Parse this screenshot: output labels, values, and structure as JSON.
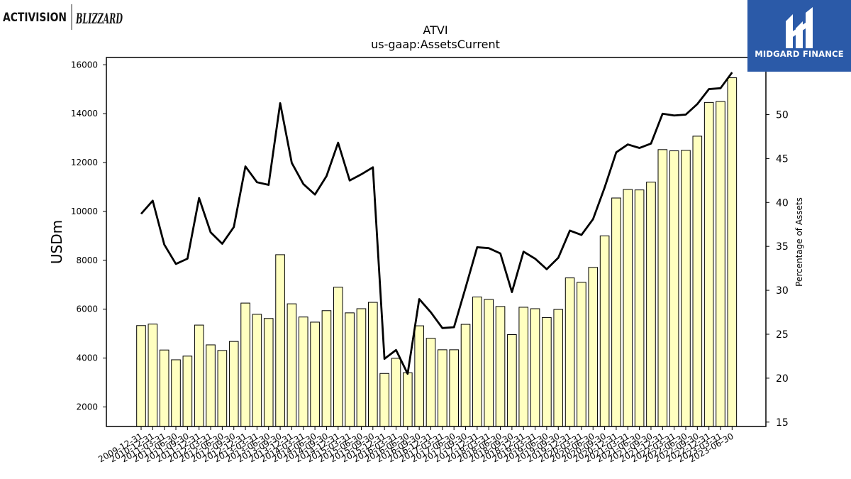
{
  "header": {
    "brand_left": "ACTIVISION",
    "brand_right": "BLIZZARD",
    "sponsor": "MIDGARD FINANCE"
  },
  "colors": {
    "bar_fill": "#ffffc0",
    "bar_stroke": "#000000",
    "line": "#000000",
    "badge_bg": "#2b5aa8"
  },
  "chart_data": {
    "type": "bar",
    "title": "ATVI",
    "subtitle": "us-gaap:AssetsCurrent",
    "ylabel": "USDm",
    "y2label": "Percentage of Assets",
    "ylim": [
      1200,
      16300
    ],
    "y2lim": [
      14.5,
      56.5
    ],
    "yticks": [
      2000,
      4000,
      6000,
      8000,
      10000,
      12000,
      14000,
      16000
    ],
    "y2ticks": [
      15,
      20,
      25,
      30,
      35,
      40,
      45,
      50
    ],
    "grid": false,
    "legend": "none",
    "categories": [
      "2009-12-31",
      "2010-12-31",
      "2011-03-31",
      "2011-06-30",
      "2011-09-30",
      "2011-12-31",
      "2012-03-31",
      "2012-06-30",
      "2012-09-30",
      "2012-12-31",
      "2013-03-31",
      "2013-06-30",
      "2013-09-30",
      "2013-12-31",
      "2014-03-31",
      "2014-06-30",
      "2014-09-30",
      "2014-12-31",
      "2015-03-31",
      "2015-06-30",
      "2015-09-30",
      "2015-12-31",
      "2016-03-31",
      "2016-06-30",
      "2016-09-30",
      "2016-12-31",
      "2017-03-31",
      "2017-06-30",
      "2017-09-30",
      "2017-12-31",
      "2018-03-31",
      "2018-06-30",
      "2018-09-30",
      "2018-12-31",
      "2019-03-31",
      "2019-06-30",
      "2019-09-30",
      "2019-12-31",
      "2020-03-31",
      "2020-06-30",
      "2020-09-30",
      "2020-12-31",
      "2021-03-31",
      "2021-06-30",
      "2021-09-30",
      "2021-12-31",
      "2022-03-31",
      "2022-06-30",
      "2022-09-30",
      "2022-12-31",
      "2023-03-31",
      "2023-06-30"
    ],
    "tick_labels": [
      "2009-12-31",
      "2010-12-31",
      "2011-03-31",
      "2011-06-30",
      "2011-09-30",
      "2011-12-31",
      "2012-03-31",
      "2012-06-30",
      "2012-09-30",
      "2012-12-31",
      "2013-03-31",
      "2013-06-30",
      "2013-09-30",
      "2013-12-31",
      "2014-03-31",
      "2014-06-30",
      "2014-09-30",
      "2014-12-31",
      "2015-03-31",
      "2015-06-30",
      "2015-09-30",
      "2015-12-31",
      "2016-03-31",
      "2016-06-30",
      "2016-09-30",
      "2016-12-31",
      "2017-03-31",
      "2017-06-30",
      "2017-09-30",
      "2017-12-31",
      "2018-03-31",
      "2018-06-30",
      "2018-09-30",
      "2018-12-31",
      "2019-03-31",
      "2019-06-30",
      "2019-09-30",
      "2019-12-31",
      "2020-03-31",
      "2020-06-30",
      "2020-09-30",
      "2020-12-31",
      "2021-03-31",
      "2021-06-30",
      "2021-09-30",
      "2021-12-31",
      "2022-03-31",
      "2022-06-30",
      "2022-09-30",
      "2022-12-31",
      "2023-03-31",
      "2023-06-30"
    ],
    "series": [
      {
        "type": "bar",
        "axis": "left",
        "values": [
          5330,
          5390,
          4330,
          3930,
          4080,
          5350,
          4540,
          4310,
          4680,
          6250,
          5790,
          5620,
          8230,
          6220,
          5680,
          5470,
          5940,
          6900,
          5850,
          6020,
          6280,
          3370,
          3990,
          3400,
          5320,
          4810,
          4340,
          4340,
          5380,
          6500,
          6400,
          6110,
          4960,
          6080,
          6020,
          5660,
          5990,
          7280,
          7100,
          7710,
          9000,
          10550,
          10900,
          10880,
          11200,
          12530,
          12480,
          12500,
          13080,
          14460,
          14500,
          15470
        ]
      },
      {
        "type": "line",
        "axis": "right",
        "values": [
          38.7,
          40.2,
          35.2,
          33.0,
          33.6,
          40.5,
          36.6,
          35.3,
          37.2,
          44.1,
          42.3,
          42.0,
          51.3,
          44.5,
          42.1,
          40.9,
          43.0,
          46.8,
          42.5,
          43.2,
          44.0,
          22.2,
          23.2,
          20.5,
          29.0,
          27.5,
          25.7,
          25.8,
          30.3,
          34.9,
          34.8,
          34.2,
          29.8,
          34.4,
          33.6,
          32.4,
          33.7,
          36.8,
          36.3,
          38.1,
          41.7,
          45.7,
          46.6,
          46.2,
          46.7,
          50.1,
          49.9,
          50.0,
          51.2,
          52.9,
          53.0,
          54.8
        ]
      }
    ]
  }
}
